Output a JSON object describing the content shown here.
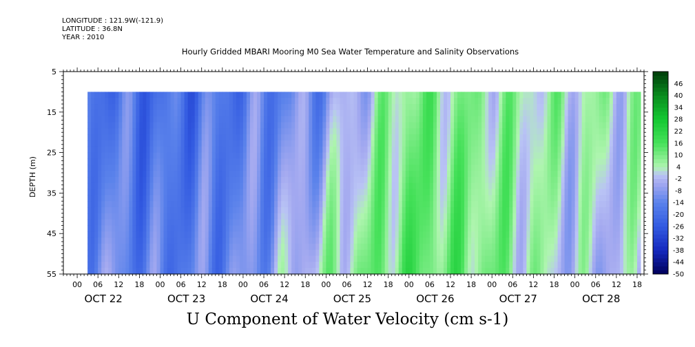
{
  "meta": {
    "longitude": "LONGITUDE : 121.9W(-121.9)",
    "latitude": "LATITUDE : 36.8N",
    "year": "YEAR : 2010"
  },
  "chart_data": {
    "type": "heatmap",
    "title": "Hourly Gridded MBARI Mooring M0 Sea Water Temperature and Salinity Observations",
    "variable": "U Component of Water Velocity (cm s-1)",
    "ylabel": "DEPTH (m)",
    "xlabel": "",
    "ylim": [
      55,
      5
    ],
    "y_ticks": [
      "5",
      "15",
      "25",
      "35",
      "45",
      "55"
    ],
    "x_hour_ticks": [
      "00",
      "06",
      "12",
      "18",
      "00",
      "06",
      "12",
      "18",
      "00",
      "06",
      "12",
      "18",
      "00",
      "06",
      "12",
      "18",
      "00",
      "06",
      "12",
      "18",
      "00",
      "06",
      "12",
      "18",
      "00",
      "06",
      "12",
      "18"
    ],
    "x_day_labels": [
      "OCT 22",
      "OCT 23",
      "OCT 24",
      "OCT 25",
      "OCT 26",
      "OCT 27",
      "OCT 28"
    ],
    "time_range_hours": [
      -4,
      164
    ],
    "data_time_range_hours": [
      3,
      163
    ],
    "data_depth_range_m": [
      10,
      55
    ],
    "colorbar": {
      "labels": [
        "46",
        "40",
        "34",
        "28",
        "22",
        "16",
        "10",
        "4",
        "-2",
        "-8",
        "-14",
        "-20",
        "-26",
        "-32",
        "-38",
        "-44",
        "-50"
      ],
      "range": [
        -50,
        52
      ]
    },
    "depth_levels_m": [
      10,
      20,
      30,
      40,
      50,
      55
    ],
    "u_velocity_by_day_cms": [
      {
        "day": "OCT 22",
        "upper_mean": -16,
        "lower_mean": -8
      },
      {
        "day": "OCT 23",
        "upper_mean": -20,
        "lower_mean": -16
      },
      {
        "day": "OCT 24",
        "upper_mean": -16,
        "lower_mean": -12
      },
      {
        "day": "OCT 25",
        "upper_mean": -10,
        "lower_mean": 4
      },
      {
        "day": "OCT 26",
        "upper_mean": 10,
        "lower_mean": 14
      },
      {
        "day": "OCT 27",
        "upper_mean": 6,
        "lower_mean": 10
      },
      {
        "day": "OCT 28",
        "upper_mean": 4,
        "lower_mean": -2
      }
    ],
    "colors": {
      "negative_strong": "#000066",
      "negative_mid": "#3355dd",
      "near_zero_neg": "#aab0f0",
      "near_zero_pos": "#b0f5b0",
      "positive_mid": "#22dd33",
      "positive_strong": "#004400"
    }
  }
}
